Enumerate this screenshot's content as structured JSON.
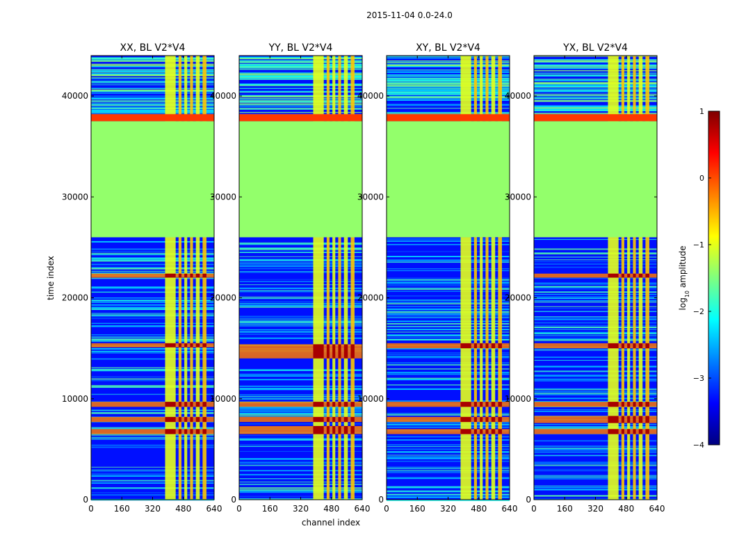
{
  "chart_data": {
    "type": "heatmap",
    "suptitle": "2015-11-04 0.0-24.0",
    "xlabel": "channel index",
    "ylabel": "time index",
    "xlim": [
      0,
      640
    ],
    "ylim": [
      0,
      44000
    ],
    "xticks": [
      0,
      160,
      320,
      480,
      640
    ],
    "yticks": [
      0,
      10000,
      20000,
      30000,
      40000
    ],
    "panels": [
      {
        "title": "XX, BL V2*V4",
        "hot_rows": [
          [
            9200,
            9700
          ],
          [
            7700,
            8200
          ],
          [
            6500,
            7000
          ],
          [
            22000,
            22400
          ],
          [
            15100,
            15500
          ]
        ]
      },
      {
        "title": "YY, BL V2*V4",
        "hot_rows": [
          [
            9200,
            9700
          ],
          [
            7700,
            8200
          ],
          [
            6500,
            7300
          ],
          [
            14000,
            15400
          ]
        ]
      },
      {
        "title": "XY, BL V2*V4",
        "hot_rows": [
          [
            9200,
            9700
          ],
          [
            7700,
            8200
          ],
          [
            6500,
            7000
          ],
          [
            15000,
            15500
          ]
        ]
      },
      {
        "title": "YX, BL V2*V4",
        "hot_rows": [
          [
            9200,
            9700
          ],
          [
            7600,
            8300
          ],
          [
            6500,
            7000
          ],
          [
            22000,
            22400
          ],
          [
            15000,
            15500
          ]
        ]
      }
    ],
    "flagged_band": {
      "from": 26000,
      "to": 37500,
      "value": -1.4
    },
    "bright_band": {
      "from": 37500,
      "to": 38200,
      "value": 0.1
    },
    "rfi_channels": [
      [
        385,
        440
      ],
      [
        455,
        470
      ],
      [
        485,
        500
      ],
      [
        515,
        530
      ],
      [
        545,
        565
      ],
      [
        580,
        600
      ]
    ],
    "background_value": -3.3,
    "colorbar": {
      "label_base": "log",
      "label_sub": "10",
      "label_rest": " amplitude",
      "range": [
        -4,
        1
      ],
      "ticks": [
        1,
        0,
        -1,
        -2,
        -3,
        -4
      ],
      "colormap": [
        "#00007f",
        "#0000ff",
        "#007fff",
        "#00ffff",
        "#7fff7f",
        "#ffff00",
        "#ff7f00",
        "#ff0000",
        "#7f0000"
      ]
    }
  }
}
